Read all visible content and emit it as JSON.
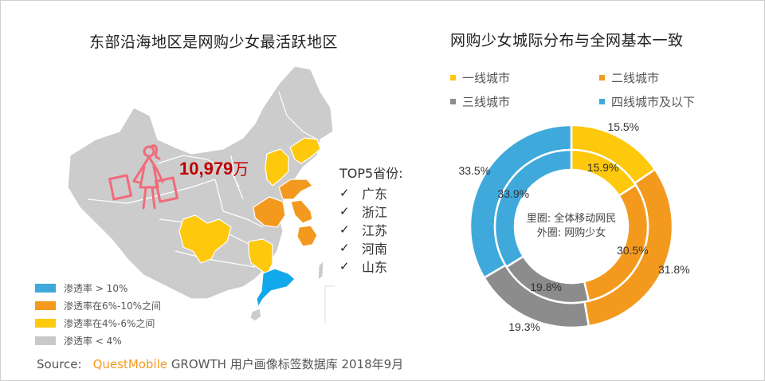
{
  "left_panel": {
    "title": "东部沿海地区是网购少女最活跃地区",
    "total_users": "10,979",
    "total_unit": "万",
    "top5": {
      "heading": "TOP5省份:",
      "check_icon": "✓",
      "provinces": [
        "广东",
        "浙江",
        "江苏",
        "河南",
        "山东"
      ]
    },
    "legend": [
      {
        "label": "渗透率 > 10%",
        "color": "#1ea8e6"
      },
      {
        "label": "渗透率在6%-10%之间",
        "color": "#f39a1e"
      },
      {
        "label": "渗透率在4%-6%之间",
        "color": "#ffc90e"
      },
      {
        "label": "渗透率 < 4%",
        "color": "#c8c8c8"
      }
    ],
    "map_colors": {
      "base": "#cccccc",
      "high": "#12a8ec",
      "mid": "#f39a1e",
      "low": "#fec80c",
      "icon": "#f06b7a"
    }
  },
  "right_panel": {
    "title": "网购少女城际分布与全网基本一致",
    "center_line1": "里圈: 全体移动网民",
    "center_line2": "外圈: 网购少女"
  },
  "source": {
    "prefix": "Source:",
    "brand": "QuestMobile",
    "text": "GROWTH 用户画像标签数据库 2018年9月"
  },
  "chart_data": [
    {
      "type": "map",
      "title": "东部沿海地区是网购少女最活跃地区",
      "total": "10,979万",
      "categories": [
        "渗透率 > 10%",
        "渗透率在6%-10%之间",
        "渗透率在4%-6%之间",
        "渗透率 < 4%"
      ],
      "regions": {
        "渗透率 > 10%": [
          "广东"
        ],
        "渗透率在6%-10%之间": [
          "浙江",
          "江苏",
          "河南",
          "山东"
        ],
        "渗透率在4%-6%之间": [
          "四川",
          "湖南",
          "北京",
          "天津",
          "河北",
          "辽宁"
        ],
        "渗透率 < 4%": [
          "其他"
        ]
      },
      "top5": [
        "广东",
        "浙江",
        "江苏",
        "河南",
        "山东"
      ]
    },
    {
      "type": "pie",
      "subtype": "nested-donut",
      "title": "网购少女城际分布与全网基本一致",
      "categories": [
        "一线城市",
        "二线城市",
        "三线城市",
        "四线城市及以下"
      ],
      "colors": [
        "#fec80c",
        "#f39a1e",
        "#8c8c8c",
        "#3fa9dc"
      ],
      "series": [
        {
          "name": "外圈: 网购少女",
          "values": [
            15.5,
            31.8,
            19.3,
            33.5
          ]
        },
        {
          "name": "里圈: 全体移动网民",
          "values": [
            15.9,
            30.5,
            19.8,
            33.9
          ]
        }
      ],
      "unit": "%",
      "legend_position": "top"
    }
  ]
}
